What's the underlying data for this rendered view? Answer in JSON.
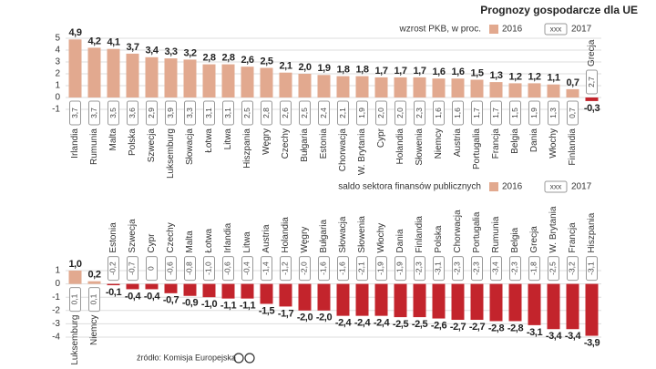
{
  "title": "Prognozy gospodarcze dla UE",
  "source": "źródło: Komisja Europejska",
  "chart_data": [
    {
      "type": "bar",
      "subtitle": "wzrost PKB, w proc.",
      "categories": [
        "Irlandia",
        "Rumunia",
        "Malta",
        "Polska",
        "Szwecja",
        "Luksemburg",
        "Słowacja",
        "Łotwa",
        "Litwa",
        "Hiszpania",
        "Węgry",
        "Czechy",
        "Bułgaria",
        "Estonia",
        "Chorwacja",
        "W. Brytania",
        "Cypr",
        "Holandia",
        "Słowenia",
        "Niemcy",
        "Austria",
        "Portugalia",
        "Francja",
        "Belgia",
        "Dania",
        "Włochy",
        "Finlandia",
        "Grecja"
      ],
      "series": [
        {
          "name": "2016",
          "color": "#e2a98f",
          "negative_color": "#c3242c",
          "values": [
            4.9,
            4.2,
            4.1,
            3.7,
            3.4,
            3.3,
            3.2,
            2.8,
            2.8,
            2.6,
            2.5,
            2.1,
            2.0,
            1.9,
            1.8,
            1.8,
            1.7,
            1.7,
            1.7,
            1.6,
            1.6,
            1.5,
            1.3,
            1.2,
            1.2,
            1.1,
            0.7,
            -0.3
          ],
          "value_labels": [
            "4,9",
            "4,2",
            "4,1",
            "3,7",
            "3,4",
            "3,3",
            "3,2",
            "2,8",
            "2,8",
            "2,6",
            "2,5",
            "2,1",
            "2,0",
            "1,9",
            "1,8",
            "1,8",
            "1,7",
            "1,7",
            "1,7",
            "1,6",
            "1,6",
            "1,5",
            "1,3",
            "1,2",
            "1,2",
            "1,1",
            "0,7",
            "-0,3"
          ]
        },
        {
          "name": "2017",
          "style": "boxed-label",
          "values": [
            3.7,
            3.7,
            3.5,
            3.6,
            2.9,
            3.9,
            3.3,
            3.1,
            3.1,
            2.5,
            2.8,
            2.6,
            2.5,
            2.4,
            2.1,
            1.9,
            2.0,
            2.0,
            2.3,
            1.6,
            1.6,
            1.7,
            1.7,
            1.5,
            1.9,
            1.3,
            0.7,
            2.7
          ],
          "value_labels": [
            "3,7",
            "3,7",
            "3,5",
            "3,6",
            "2,9",
            "3,9",
            "3,3",
            "3,1",
            "3,1",
            "2,5",
            "2,8",
            "2,6",
            "2,5",
            "2,4",
            "2,1",
            "1,9",
            "2,0",
            "2,0",
            "2,3",
            "1,6",
            "1,6",
            "1,7",
            "1,7",
            "1,5",
            "1,9",
            "1,3",
            "0,7",
            "2,7"
          ]
        }
      ],
      "legend_sample": "xxx",
      "ylim": [
        -1,
        5
      ],
      "yticks": [
        -1,
        0,
        1,
        2,
        3,
        4,
        5
      ],
      "grid": true
    },
    {
      "type": "bar",
      "subtitle": "saldo sektora finansów publicznych",
      "categories": [
        "Luksemburg",
        "Niemcy",
        "Estonia",
        "Szwecja",
        "Cypr",
        "Czechy",
        "Malta",
        "Łotwa",
        "Irlandia",
        "Litwa",
        "Austria",
        "Holandia",
        "Węgry",
        "Bułgaria",
        "Słowacja",
        "Słowenia",
        "Włochy",
        "Dania",
        "Finlandia",
        "Polska",
        "Chorwacja",
        "Portugalia",
        "Rumunia",
        "Belgia",
        "Grecja",
        "W. Brytania",
        "Francja",
        "Hiszpania"
      ],
      "series": [
        {
          "name": "2016",
          "color": "#e2a98f",
          "negative_color": "#c3242c",
          "values": [
            1.0,
            0.2,
            -0.1,
            -0.4,
            -0.4,
            -0.7,
            -0.9,
            -1.0,
            -1.1,
            -1.1,
            -1.5,
            -1.7,
            -2.0,
            -2.0,
            -2.4,
            -2.4,
            -2.4,
            -2.5,
            -2.5,
            -2.6,
            -2.7,
            -2.7,
            -2.8,
            -2.8,
            -3.1,
            -3.4,
            -3.4,
            -3.9
          ],
          "value_labels": [
            "1,0",
            "0,2",
            "-0,1",
            "-0,4",
            "-0,4",
            "-0,7",
            "-0,9",
            "-1,0",
            "-1,1",
            "-1,1",
            "-1,5",
            "-1,7",
            "-2,0",
            "-2,0",
            "-2,4",
            "-2,4",
            "-2,4",
            "-2,5",
            "-2,5",
            "-2,6",
            "-2,7",
            "-2,7",
            "-2,8",
            "-2,8",
            "-3,1",
            "-3,4",
            "-3,4",
            "-3,9"
          ]
        },
        {
          "name": "2017",
          "style": "boxed-label",
          "values": [
            0.1,
            0.1,
            -0.2,
            -0.7,
            0,
            -0.6,
            -0.8,
            -1.0,
            -0.6,
            -0.4,
            -1.4,
            -1.2,
            -2.0,
            -1.6,
            -1.6,
            -2.1,
            -1.9,
            -1.9,
            -2.3,
            -3.1,
            -2.3,
            -2.3,
            -3.4,
            -2.3,
            -1.8,
            -2.5,
            -3.2,
            -3.1
          ],
          "value_labels": [
            "0,1",
            "0,1",
            "-0,2",
            "-0,7",
            "0",
            "-0,6",
            "-0,8",
            "-1,0",
            "-0,6",
            "-0,4",
            "-1,4",
            "-1,2",
            "-2,0",
            "-1,6",
            "-1,6",
            "-2,1",
            "-1,9",
            "-1,9",
            "-2,3",
            "-3,1",
            "-2,3",
            "-2,3",
            "-3,4",
            "-2,3",
            "-1,8",
            "-2,5",
            "-3,2",
            "-3,1"
          ]
        }
      ],
      "legend_sample": "xxx",
      "ylim": [
        -4,
        1
      ],
      "yticks": [
        -4,
        -3,
        -2,
        -1,
        0,
        1
      ],
      "grid": true
    }
  ]
}
